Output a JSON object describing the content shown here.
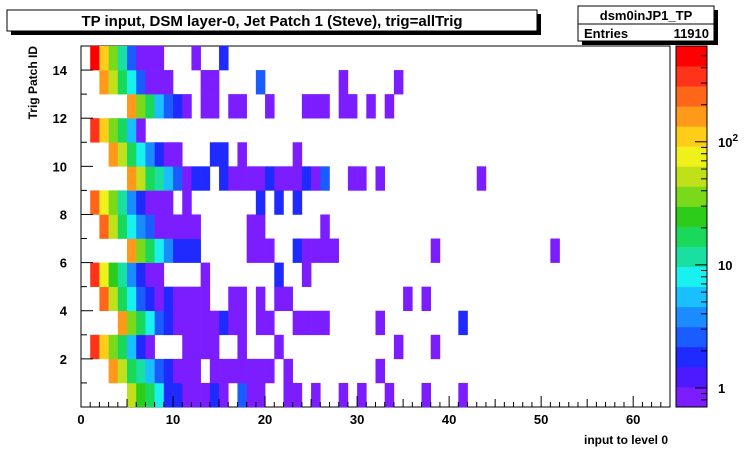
{
  "title": "TP input, DSM layer-0, Jet Patch 1 (Steve), trig=allTrig",
  "stats": {
    "name": "dsm0inJP1_TP",
    "entries_label": "Entries",
    "entries_value": "11910"
  },
  "chart_data": {
    "type": "heatmap",
    "title": "TP input, DSM layer-0, Jet Patch 1 (Steve), trig=allTrig",
    "xlabel": "input to level 0",
    "ylabel": "Trig Patch  ID",
    "xlim": [
      0,
      64
    ],
    "ylim": [
      0,
      15
    ],
    "x_ticks": [
      0,
      10,
      20,
      30,
      40,
      50,
      60
    ],
    "y_ticks": [
      2,
      4,
      6,
      8,
      10,
      12,
      14
    ],
    "z_scale": "log",
    "zlim": [
      0.7,
      600
    ],
    "colorbar_ticks": [
      {
        "value": 1,
        "label": "1"
      },
      {
        "value": 10,
        "label": "10"
      },
      {
        "value": 100,
        "label": "10^2"
      }
    ],
    "rows": [
      {
        "y": 0,
        "cells": [
          [
            5,
            60
          ],
          [
            6,
            25
          ],
          [
            7,
            15
          ],
          [
            8,
            7
          ],
          [
            9,
            2
          ],
          [
            10,
            2
          ],
          [
            11,
            1
          ],
          [
            12,
            1
          ],
          [
            13,
            1
          ],
          [
            14,
            2
          ],
          [
            15,
            1
          ],
          [
            17,
            3
          ],
          [
            18,
            1
          ],
          [
            19,
            1
          ],
          [
            22,
            1
          ],
          [
            23,
            1
          ],
          [
            25,
            1
          ],
          [
            28,
            1
          ],
          [
            30,
            1
          ],
          [
            33,
            1
          ],
          [
            37,
            1
          ],
          [
            41,
            1
          ]
        ]
      },
      {
        "y": 1,
        "cells": [
          [
            3,
            150
          ],
          [
            4,
            50
          ],
          [
            5,
            20
          ],
          [
            6,
            10
          ],
          [
            7,
            5
          ],
          [
            8,
            3
          ],
          [
            9,
            2
          ],
          [
            10,
            1
          ],
          [
            11,
            1
          ],
          [
            12,
            1
          ],
          [
            14,
            1
          ],
          [
            15,
            1
          ],
          [
            16,
            1
          ],
          [
            17,
            1
          ],
          [
            18,
            1
          ],
          [
            19,
            1
          ],
          [
            20,
            1
          ],
          [
            22,
            1
          ],
          [
            32,
            1
          ]
        ]
      },
      {
        "y": 2,
        "cells": [
          [
            1,
            300
          ],
          [
            2,
            100
          ],
          [
            3,
            40
          ],
          [
            4,
            15
          ],
          [
            5,
            5
          ],
          [
            6,
            2
          ],
          [
            7,
            1
          ],
          [
            11,
            1
          ],
          [
            12,
            1
          ],
          [
            13,
            1
          ],
          [
            14,
            1
          ],
          [
            17,
            1
          ],
          [
            21,
            1
          ],
          [
            34,
            1
          ],
          [
            38,
            1
          ]
        ]
      },
      {
        "y": 3,
        "cells": [
          [
            4,
            150
          ],
          [
            5,
            40
          ],
          [
            6,
            15
          ],
          [
            7,
            8
          ],
          [
            8,
            3
          ],
          [
            9,
            2
          ],
          [
            10,
            1
          ],
          [
            11,
            1
          ],
          [
            12,
            1
          ],
          [
            13,
            1
          ],
          [
            14,
            1
          ],
          [
            15,
            2
          ],
          [
            16,
            1
          ],
          [
            17,
            1
          ],
          [
            19,
            1
          ],
          [
            20,
            1
          ],
          [
            23,
            1
          ],
          [
            24,
            1
          ],
          [
            25,
            1
          ],
          [
            26,
            1
          ],
          [
            32,
            1
          ],
          [
            41,
            2
          ]
        ]
      },
      {
        "y": 4,
        "cells": [
          [
            2,
            200
          ],
          [
            3,
            60
          ],
          [
            4,
            20
          ],
          [
            5,
            8
          ],
          [
            6,
            3
          ],
          [
            7,
            2
          ],
          [
            8,
            1
          ],
          [
            9,
            2
          ],
          [
            10,
            1
          ],
          [
            11,
            1
          ],
          [
            12,
            1
          ],
          [
            13,
            1
          ],
          [
            16,
            1
          ],
          [
            17,
            1
          ],
          [
            19,
            1
          ],
          [
            21,
            1
          ],
          [
            22,
            1
          ],
          [
            35,
            1
          ],
          [
            37,
            1
          ]
        ]
      },
      {
        "y": 5,
        "cells": [
          [
            1,
            300
          ],
          [
            2,
            80
          ],
          [
            3,
            25
          ],
          [
            4,
            10
          ],
          [
            5,
            4
          ],
          [
            6,
            2
          ],
          [
            7,
            1
          ],
          [
            8,
            1
          ],
          [
            13,
            1
          ],
          [
            21,
            2
          ],
          [
            24,
            1
          ]
        ]
      },
      {
        "y": 6,
        "cells": [
          [
            5,
            150
          ],
          [
            6,
            40
          ],
          [
            7,
            15
          ],
          [
            8,
            8
          ],
          [
            9,
            4
          ],
          [
            10,
            2
          ],
          [
            11,
            2
          ],
          [
            12,
            2
          ],
          [
            18,
            1
          ],
          [
            19,
            1
          ],
          [
            20,
            1
          ],
          [
            23,
            2
          ],
          [
            24,
            1
          ],
          [
            25,
            1
          ],
          [
            26,
            1
          ],
          [
            27,
            1
          ],
          [
            38,
            1
          ],
          [
            51,
            1
          ]
        ]
      },
      {
        "y": 7,
        "cells": [
          [
            2,
            200
          ],
          [
            3,
            60
          ],
          [
            4,
            20
          ],
          [
            5,
            8
          ],
          [
            6,
            4
          ],
          [
            7,
            3
          ],
          [
            8,
            1
          ],
          [
            9,
            1
          ],
          [
            10,
            1
          ],
          [
            11,
            1
          ],
          [
            12,
            1
          ],
          [
            18,
            1
          ],
          [
            19,
            1
          ],
          [
            26,
            1
          ]
        ]
      },
      {
        "y": 8,
        "cells": [
          [
            1,
            250
          ],
          [
            2,
            80
          ],
          [
            3,
            30
          ],
          [
            4,
            10
          ],
          [
            5,
            4
          ],
          [
            6,
            2
          ],
          [
            7,
            1
          ],
          [
            8,
            1
          ],
          [
            9,
            1
          ],
          [
            11,
            1
          ],
          [
            19,
            2
          ],
          [
            21,
            2
          ],
          [
            23,
            2
          ]
        ]
      },
      {
        "y": 9,
        "cells": [
          [
            5,
            150
          ],
          [
            6,
            50
          ],
          [
            7,
            20
          ],
          [
            8,
            10
          ],
          [
            9,
            5
          ],
          [
            10,
            3
          ],
          [
            11,
            1
          ],
          [
            12,
            2
          ],
          [
            13,
            2
          ],
          [
            15,
            2
          ],
          [
            16,
            1
          ],
          [
            17,
            1
          ],
          [
            18,
            1
          ],
          [
            19,
            1
          ],
          [
            20,
            2
          ],
          [
            21,
            1
          ],
          [
            22,
            1
          ],
          [
            23,
            1
          ],
          [
            24,
            2
          ],
          [
            25,
            1
          ],
          [
            26,
            3
          ],
          [
            29,
            1
          ],
          [
            30,
            1
          ],
          [
            32,
            1
          ],
          [
            43,
            1
          ]
        ]
      },
      {
        "y": 10,
        "cells": [
          [
            3,
            150
          ],
          [
            4,
            50
          ],
          [
            5,
            20
          ],
          [
            6,
            8
          ],
          [
            7,
            4
          ],
          [
            8,
            2
          ],
          [
            9,
            1
          ],
          [
            10,
            1
          ],
          [
            14,
            2
          ],
          [
            15,
            2
          ],
          [
            17,
            1
          ],
          [
            23,
            1
          ]
        ]
      },
      {
        "y": 11,
        "cells": [
          [
            1,
            400
          ],
          [
            2,
            120
          ],
          [
            3,
            40
          ],
          [
            4,
            15
          ],
          [
            5,
            5
          ],
          [
            6,
            1
          ]
        ]
      },
      {
        "y": 12,
        "cells": [
          [
            5,
            150
          ],
          [
            6,
            40
          ],
          [
            7,
            15
          ],
          [
            8,
            6
          ],
          [
            9,
            3
          ],
          [
            10,
            2
          ],
          [
            11,
            1
          ],
          [
            13,
            1
          ],
          [
            14,
            1
          ],
          [
            16,
            1
          ],
          [
            17,
            1
          ],
          [
            20,
            1
          ],
          [
            24,
            1
          ],
          [
            25,
            1
          ],
          [
            26,
            1
          ],
          [
            28,
            1
          ],
          [
            29,
            1
          ],
          [
            31,
            1
          ],
          [
            33,
            1
          ]
        ]
      },
      {
        "y": 13,
        "cells": [
          [
            2,
            150
          ],
          [
            3,
            60
          ],
          [
            4,
            20
          ],
          [
            5,
            8
          ],
          [
            6,
            3
          ],
          [
            7,
            1
          ],
          [
            8,
            1
          ],
          [
            9,
            1
          ],
          [
            13,
            1
          ],
          [
            14,
            1
          ],
          [
            19,
            3
          ],
          [
            28,
            1
          ],
          [
            34,
            1
          ]
        ]
      },
      {
        "y": 14,
        "cells": [
          [
            1,
            500
          ],
          [
            2,
            100
          ],
          [
            3,
            30
          ],
          [
            4,
            12
          ],
          [
            5,
            3
          ],
          [
            6,
            1
          ],
          [
            7,
            1
          ],
          [
            8,
            1
          ],
          [
            12,
            1
          ],
          [
            15,
            2
          ]
        ]
      }
    ]
  }
}
